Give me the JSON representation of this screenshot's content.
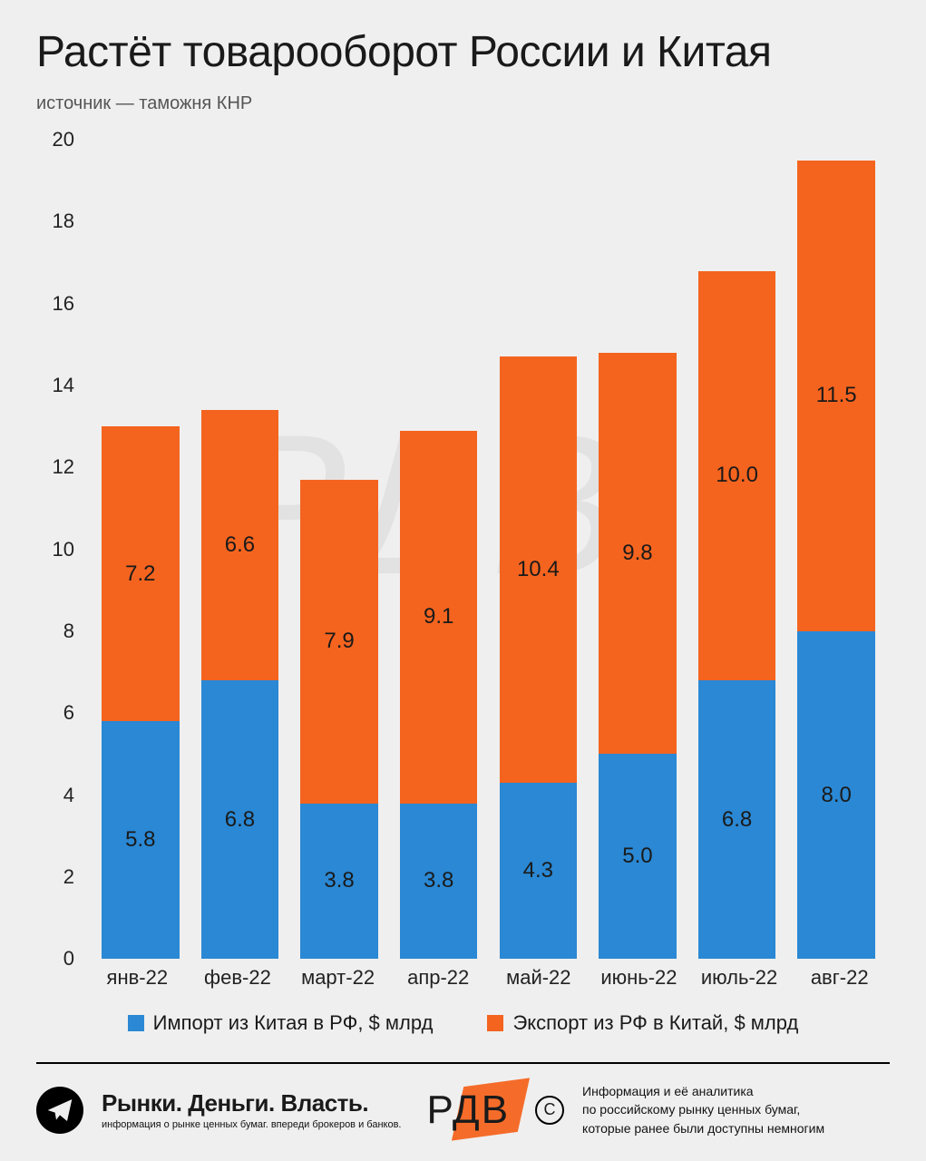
{
  "title": "Растёт товарооборот России и Китая",
  "subtitle": "источник — таможня КНР",
  "chart": {
    "type": "stacked-bar",
    "ylim": [
      0,
      20
    ],
    "ytick_step": 2,
    "yticks": [
      "0",
      "2",
      "4",
      "6",
      "8",
      "10",
      "12",
      "14",
      "16",
      "18",
      "20"
    ],
    "categories": [
      "янв-22",
      "фев-22",
      "март-22",
      "апр-22",
      "май-22",
      "июнь-22",
      "июль-22",
      "авг-22"
    ],
    "series": [
      {
        "key": "import",
        "label": "Импорт из Китая в РФ, $ млрд",
        "color": "#2a88d4",
        "values": [
          5.8,
          6.8,
          3.8,
          3.8,
          4.3,
          5.0,
          6.8,
          8.0
        ],
        "labels": [
          "5.8",
          "6.8",
          "3.8",
          "3.8",
          "4.3",
          "5.0",
          "6.8",
          "8.0"
        ]
      },
      {
        "key": "export",
        "label": "Экспорт из РФ в Китай, $ млрд",
        "color": "#f4641f",
        "values": [
          7.2,
          6.6,
          7.9,
          9.1,
          10.4,
          9.8,
          10.0,
          11.5
        ],
        "labels": [
          "7.2",
          "6.6",
          "7.9",
          "9.1",
          "10.4",
          "9.8",
          "10.0",
          "11.5"
        ]
      }
    ],
    "background_color": "#efefef",
    "label_fontsize": 24,
    "axis_fontsize": 22,
    "title_fontsize": 48,
    "legend_fontsize": 22,
    "bar_width_ratio": 0.78
  },
  "footer": {
    "brand_main": "Рынки. Деньги. Власть.",
    "brand_sub": "информация о рынке ценных бумаг. впереди брокеров и банков.",
    "logo_text": "РДВ",
    "copyright_symbol": "C",
    "info_line1": "Информация и её аналитика",
    "info_line2": "по российскому рынку ценных бумаг,",
    "info_line3": "которые ранее были доступны немногим"
  },
  "watermark_text": "РДВ"
}
